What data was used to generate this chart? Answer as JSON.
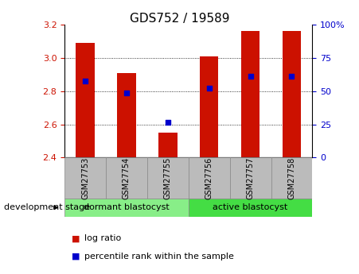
{
  "title": "GDS752 / 19589",
  "samples": [
    "GSM27753",
    "GSM27754",
    "GSM27755",
    "GSM27756",
    "GSM27757",
    "GSM27758"
  ],
  "bar_bottom": 2.4,
  "bar_tops": [
    3.09,
    2.91,
    2.55,
    3.01,
    3.16,
    3.16
  ],
  "percentile_values": [
    2.86,
    2.79,
    2.61,
    2.82,
    2.89,
    2.89
  ],
  "ylim": [
    2.4,
    3.2
  ],
  "right_ylim": [
    0,
    100
  ],
  "right_yticks": [
    0,
    25,
    50,
    75,
    100
  ],
  "right_yticklabels": [
    "0",
    "25",
    "50",
    "75",
    "100%"
  ],
  "left_yticks": [
    2.4,
    2.6,
    2.8,
    3.0,
    3.2
  ],
  "bar_color": "#cc1100",
  "dot_color": "#0000cc",
  "groups": [
    {
      "label": "dormant blastocyst",
      "indices": [
        0,
        1,
        2
      ],
      "color": "#88ee88"
    },
    {
      "label": "active blastocyst",
      "indices": [
        3,
        4,
        5
      ],
      "color": "#44dd44"
    }
  ],
  "group_label": "development stage",
  "legend_items": [
    {
      "label": "log ratio",
      "color": "#cc1100"
    },
    {
      "label": "percentile rank within the sample",
      "color": "#0000cc"
    }
  ],
  "left_tick_color": "#cc1100",
  "right_tick_color": "#0000cc",
  "grid_yticks": [
    2.6,
    2.8,
    3.0
  ],
  "tick_bg_color": "#bbbbbb",
  "title_fontsize": 11,
  "bar_width": 0.45
}
